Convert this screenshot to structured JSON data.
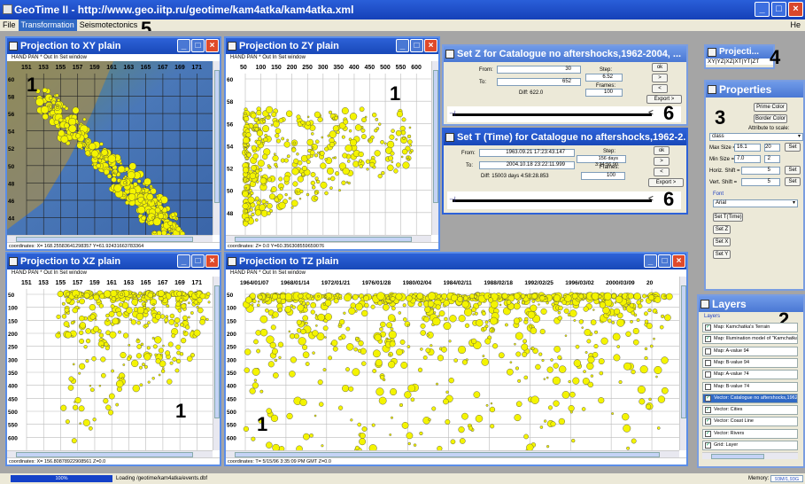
{
  "app": {
    "title": "GeoTime II - http://www.geo.iitp.ru/geotime/kam4atka/kam4atka.xml"
  },
  "menu": {
    "items": [
      "File",
      "Transformation",
      "Seismotectonics"
    ],
    "selected": "Transformation",
    "help": "He"
  },
  "toolbar_text": "HAND PAN * Out In Set window",
  "win_xy": {
    "title": "Projection to XY plain",
    "xticks": [
      "151",
      "153",
      "155",
      "157",
      "159",
      "161",
      "163",
      "165",
      "167",
      "169",
      "171"
    ],
    "yticks": [
      "60",
      "58",
      "56",
      "54",
      "52",
      "50",
      "48",
      "46",
      "44"
    ],
    "status": "coordinates: X= 168.25583641298357 Y=61.92431663783364",
    "number": "1"
  },
  "win_zy": {
    "title": "Projection to ZY plain",
    "xticks": [
      "50",
      "100",
      "150",
      "200",
      "250",
      "300",
      "350",
      "400",
      "450",
      "500",
      "550",
      "600"
    ],
    "yticks": [
      "60",
      "58",
      "56",
      "54",
      "52",
      "50",
      "48"
    ],
    "status": "coordinates: Z= 0.0 Y=60.356308559659076",
    "number": "1"
  },
  "win_xz": {
    "title": "Projection to XZ plain",
    "xticks": [
      "151",
      "153",
      "155",
      "157",
      "159",
      "161",
      "163",
      "165",
      "167",
      "169",
      "171"
    ],
    "yticks": [
      "50",
      "100",
      "150",
      "200",
      "250",
      "300",
      "350",
      "400",
      "450",
      "500",
      "550",
      "600"
    ],
    "status": "coordinates: X= 156.80878922908561 Z=0.0",
    "number": "1"
  },
  "win_tz": {
    "title": "Projection to TZ plain",
    "xticks": [
      "1964/01/07",
      "1968/01/14",
      "1972/01/21",
      "1976/01/28",
      "1980/02/04",
      "1984/02/11",
      "1988/02/18",
      "1992/02/25",
      "1996/03/02",
      "2000/03/09",
      "20"
    ],
    "yticks": [
      "50",
      "100",
      "150",
      "200",
      "250",
      "300",
      "350",
      "400",
      "450",
      "500",
      "550",
      "600"
    ],
    "status": "coordinates: T= 5/15/96 3:35:09 PM GMT Z=0.0",
    "number": "1"
  },
  "set_z": {
    "title": "Set Z for Catalogue no aftershocks,1962-2004, ...",
    "from_label": "From:",
    "from_value": "30",
    "to_label": "To:",
    "to_value": "652",
    "diff": "Diff: 622.0",
    "step_label": "Step:",
    "step_value": "6.52",
    "frames_label": "Frames:",
    "frames_value": "100",
    "buttons": [
      "ok",
      ">",
      "<",
      "Export >"
    ],
    "number": "6"
  },
  "set_t": {
    "title": "Set T (Time) for Catalogue no aftershocks,1962-2...",
    "from_label": "From:",
    "from_value": "1963.09.21  17:23:43.147",
    "to_label": "To:",
    "to_value": "2004.10.18  23:22:11.999",
    "diff": "Diff: 15003 days 4:58:28.853",
    "step_label": "Step:",
    "step_value": "156 days 3:34:56.90",
    "frames_label": "Frames:",
    "frames_value": "100",
    "buttons": [
      "ok",
      ">",
      "<",
      "Export >"
    ],
    "number": "6"
  },
  "projection_small": {
    "title": "Projecti...",
    "text": "XY|YZ|XZ|XT|YT|ZT",
    "number": "4"
  },
  "properties": {
    "title": "Properties",
    "prime_color": "Prime Color",
    "border_color": "Border Color",
    "attr_label": "Attribute to scale:",
    "attr_value": "class",
    "max_size_label": "Max Size =",
    "max_size": "16.1",
    "max_size2": "20",
    "min_size_label": "Min Size =",
    "min_size": "7.0",
    "min_size2": "2",
    "horiz_label": "Horiz. Shift =",
    "horiz_value": "5",
    "vert_label": "Vert. Shift =",
    "vert_value": "5",
    "set": "Set",
    "font_label": "Font",
    "font_value": "Arial",
    "buttons": [
      "Set T(Time)",
      "Set Z",
      "Set X",
      "Set Y"
    ],
    "number": "3"
  },
  "layers": {
    "title": "Layers",
    "header": "Layers",
    "number": "2",
    "items": [
      {
        "label": "Map: Kamchatka's Terrain",
        "checked": true,
        "selected": false
      },
      {
        "label": "Map: Illumination model of \"Kamchatka's Te",
        "checked": true,
        "selected": false
      },
      {
        "label": "Map: A-value 94",
        "checked": false,
        "selected": false
      },
      {
        "label": "Map: B-value 94",
        "checked": false,
        "selected": false
      },
      {
        "label": "Map: A-value 74",
        "checked": false,
        "selected": false
      },
      {
        "label": "Map: B-value 74",
        "checked": false,
        "selected": false
      },
      {
        "label": "Vector: Catalogue no aftershocks,1962-20",
        "checked": true,
        "selected": true
      },
      {
        "label": "Vector: Cities",
        "checked": true,
        "selected": false
      },
      {
        "label": "Vector: Coast Line",
        "checked": true,
        "selected": false
      },
      {
        "label": "Vector: Rivers",
        "checked": true,
        "selected": false
      },
      {
        "label": "Grid: Layer",
        "checked": true,
        "selected": false
      }
    ]
  },
  "big_numbers": {
    "menu_marker": "5"
  },
  "status": {
    "progress_text": "100%",
    "progress": 1.0,
    "loading": "Loading /geotime/kam4atka/events.dbf",
    "memory_label": "Memory:",
    "memory_value": "93M/1,93G"
  },
  "colors": {
    "accent": "#316ac5",
    "title_blue": "#1848b8",
    "event_fill": "#f4f400",
    "desktop": "#a5a5a5"
  }
}
